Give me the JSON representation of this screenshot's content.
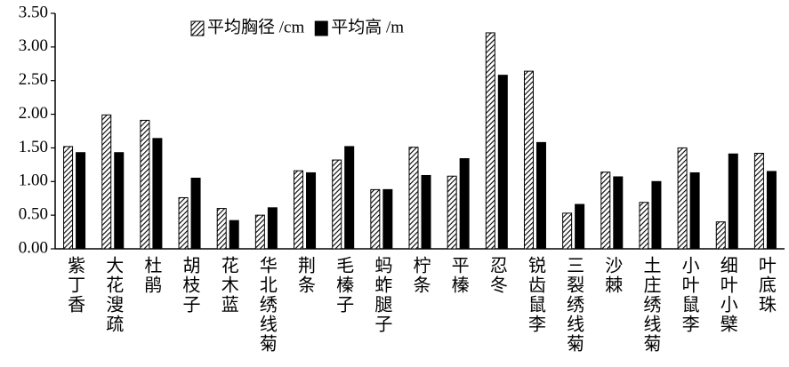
{
  "chart_data": {
    "type": "bar",
    "categories": [
      "紫丁香",
      "大花溲疏",
      "杜鹃",
      "胡枝子",
      "花木蓝",
      "华北绣线菊",
      "荆条",
      "毛榛子",
      "蚂蚱腿子",
      "柠条",
      "平榛",
      "忍冬",
      "锐齿鼠李",
      "三裂绣线菊",
      "沙棘",
      "土庄绣线菊",
      "小叶鼠李",
      "细叶小檗",
      "叶底珠"
    ],
    "series": [
      {
        "name": "平均胸径 /cm",
        "color": "#000000",
        "pattern": "hatch",
        "values": [
          1.52,
          1.99,
          1.91,
          0.76,
          0.6,
          0.5,
          1.16,
          1.32,
          0.88,
          1.51,
          1.08,
          3.21,
          2.64,
          0.53,
          1.14,
          0.69,
          1.5,
          0.4,
          1.42
        ]
      },
      {
        "name": "平均高 /m",
        "color": "#000000",
        "pattern": "solid",
        "values": [
          1.43,
          1.43,
          1.64,
          1.05,
          0.42,
          0.61,
          1.13,
          1.52,
          0.88,
          1.09,
          1.34,
          2.58,
          1.58,
          0.66,
          1.07,
          1.0,
          1.13,
          1.41,
          1.15
        ]
      }
    ],
    "ylim": [
      0,
      3.5
    ],
    "yticks": [
      {
        "value": 0,
        "label": "0.00"
      },
      {
        "value": 0.5,
        "label": "0.50"
      },
      {
        "value": 1,
        "label": "1.00"
      },
      {
        "value": 1.5,
        "label": "1.50"
      },
      {
        "value": 2,
        "label": "2.00"
      },
      {
        "value": 2.5,
        "label": "2.50"
      },
      {
        "value": 3,
        "label": "3.00"
      },
      {
        "value": 3.5,
        "label": "3.50"
      }
    ],
    "grid": false,
    "legend": "top"
  }
}
